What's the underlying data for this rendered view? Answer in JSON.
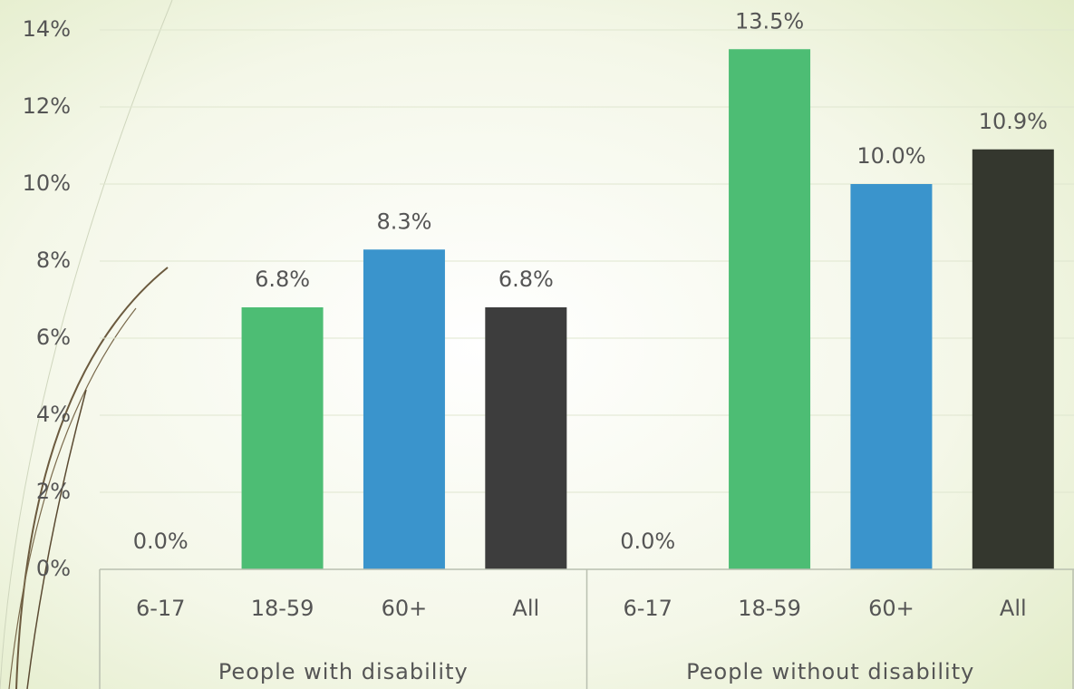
{
  "chart_data": {
    "type": "bar",
    "groups": [
      {
        "name": "People with disability",
        "categories": [
          "6-17",
          "18-59",
          "60+",
          "All"
        ],
        "values": [
          0,
          6.8,
          8.3,
          6.8
        ],
        "value_labels": [
          "0.0%",
          "6.8%",
          "8.3%",
          "6.8%"
        ],
        "colors": [
          "#4dbd74",
          "#4dbd74",
          "#3a94cc",
          "#3d3d3d"
        ]
      },
      {
        "name": "People without disability",
        "categories": [
          "6-17",
          "18-59",
          "60+",
          "All"
        ],
        "values": [
          0,
          13.5,
          10.0,
          10.9
        ],
        "value_labels": [
          "0.0%",
          "13.5%",
          "10.0%",
          "10.9%"
        ],
        "colors": [
          "#4dbd74",
          "#4dbd74",
          "#3a94cc",
          "#34372e"
        ]
      }
    ],
    "ylim": [
      0,
      14
    ],
    "yticks": [
      {
        "value": 0,
        "label": "0%"
      },
      {
        "value": 2,
        "label": "2%"
      },
      {
        "value": 4,
        "label": "4%"
      },
      {
        "value": 6,
        "label": "6%"
      },
      {
        "value": 8,
        "label": "8%"
      },
      {
        "value": 10,
        "label": "10%"
      },
      {
        "value": 12,
        "label": "12%"
      },
      {
        "value": 14,
        "label": "14%"
      }
    ],
    "grid": true
  }
}
